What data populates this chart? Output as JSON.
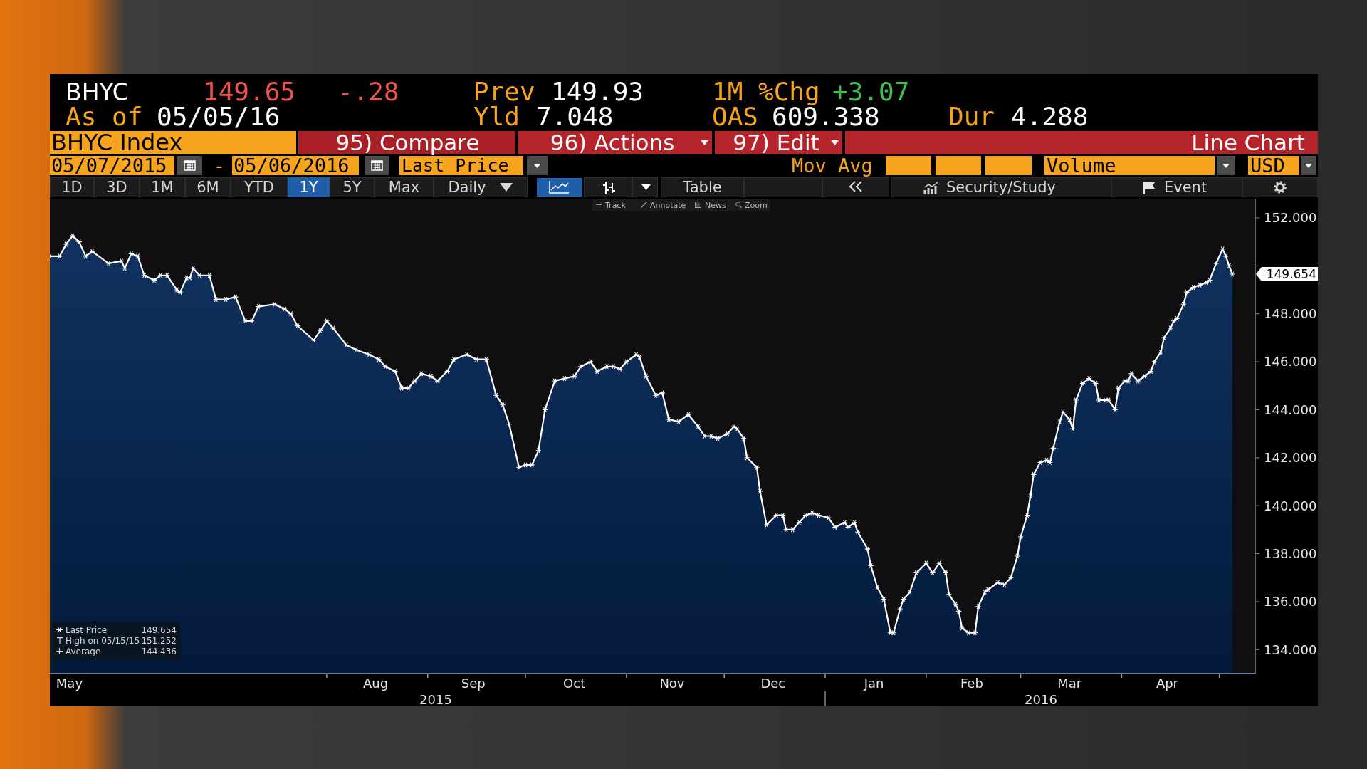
{
  "chart_data": {
    "type": "area",
    "title": "BHYC Index",
    "x": [
      "2015-05-08",
      "2015-05-11",
      "2015-05-13",
      "2015-05-15",
      "2015-05-17",
      "2015-05-19",
      "2015-05-21",
      "2015-05-26",
      "2015-05-30",
      "2015-05-31",
      "2015-06-02",
      "2015-06-04",
      "2015-06-06",
      "2015-06-09",
      "2015-06-11",
      "2015-06-13",
      "2015-06-16",
      "2015-06-17",
      "2015-06-19",
      "2015-06-20",
      "2015-06-21",
      "2015-06-23",
      "2015-06-26",
      "2015-06-28",
      "2015-07-01",
      "2015-07-04",
      "2015-07-07",
      "2015-07-09",
      "2015-07-11",
      "2015-07-16",
      "2015-07-19",
      "2015-07-21",
      "2015-07-23",
      "2015-07-28",
      "2015-07-30",
      "2015-08-01",
      "2015-08-03",
      "2015-08-07",
      "2015-08-10",
      "2015-08-14",
      "2015-08-17",
      "2015-08-19",
      "2015-08-22",
      "2015-08-24",
      "2015-08-26",
      "2015-08-28",
      "2015-08-30",
      "2015-09-02",
      "2015-09-04",
      "2015-09-07",
      "2015-09-09",
      "2015-09-13",
      "2015-09-16",
      "2015-09-19",
      "2015-09-22",
      "2015-09-24",
      "2015-09-26",
      "2015-09-29",
      "2015-10-01",
      "2015-10-03",
      "2015-10-05",
      "2015-10-07",
      "2015-10-10",
      "2015-10-13",
      "2015-10-16",
      "2015-10-18",
      "2015-10-21",
      "2015-10-23",
      "2015-10-26",
      "2015-10-28",
      "2015-10-30",
      "2015-11-01",
      "2015-11-04",
      "2015-11-05",
      "2015-11-07",
      "2015-11-10",
      "2015-11-12",
      "2015-11-14",
      "2015-11-17",
      "2015-11-20",
      "2015-11-23",
      "2015-11-25",
      "2015-11-27",
      "2015-11-29",
      "2015-12-02",
      "2015-12-04",
      "2015-12-05",
      "2015-12-07",
      "2015-12-08",
      "2015-12-11",
      "2015-12-12",
      "2015-12-14",
      "2015-12-17",
      "2015-12-19",
      "2015-12-20",
      "2015-12-22",
      "2015-12-24",
      "2015-12-26",
      "2015-12-28",
      "2015-12-30",
      "2016-01-02",
      "2016-01-04",
      "2016-01-07",
      "2016-01-08",
      "2016-01-10",
      "2016-01-11",
      "2016-01-14",
      "2016-01-15",
      "2016-01-17",
      "2016-01-19",
      "2016-01-21",
      "2016-01-22",
      "2016-01-24",
      "2016-01-25",
      "2016-01-27",
      "2016-01-29",
      "2016-02-01",
      "2016-02-03",
      "2016-02-05",
      "2016-02-07",
      "2016-02-08",
      "2016-02-10",
      "2016-02-11",
      "2016-02-12",
      "2016-02-14",
      "2016-02-16",
      "2016-02-17",
      "2016-02-19",
      "2016-02-20",
      "2016-02-23",
      "2016-02-25",
      "2016-02-27",
      "2016-02-29",
      "2016-03-01",
      "2016-03-03",
      "2016-03-04",
      "2016-03-05",
      "2016-03-07",
      "2016-03-09",
      "2016-03-10",
      "2016-03-11",
      "2016-03-13",
      "2016-03-14",
      "2016-03-16",
      "2016-03-17",
      "2016-03-18",
      "2016-03-20",
      "2016-03-22",
      "2016-03-24",
      "2016-03-25",
      "2016-03-27",
      "2016-03-28",
      "2016-03-30",
      "2016-03-31",
      "2016-04-02",
      "2016-04-03",
      "2016-04-04",
      "2016-04-06",
      "2016-04-08",
      "2016-04-10",
      "2016-04-11",
      "2016-04-13",
      "2016-04-14",
      "2016-04-16",
      "2016-04-17",
      "2016-04-18",
      "2016-04-20",
      "2016-04-21",
      "2016-04-23",
      "2016-04-25",
      "2016-04-27",
      "2016-04-28",
      "2016-04-30",
      "2016-05-02",
      "2016-05-03",
      "2016-05-04",
      "2016-05-05"
    ],
    "series": [
      {
        "name": "Last Price",
        "color": "#ffffff",
        "values": [
          150.4,
          150.4,
          150.9,
          151.252,
          151.0,
          150.4,
          150.6,
          150.1,
          150.2,
          149.9,
          150.5,
          150.4,
          149.6,
          149.4,
          149.6,
          149.6,
          149.0,
          148.9,
          149.5,
          149.5,
          149.9,
          149.6,
          149.6,
          148.6,
          148.6,
          148.7,
          147.7,
          147.7,
          148.3,
          148.4,
          148.2,
          148.0,
          147.5,
          146.9,
          147.3,
          147.7,
          147.4,
          146.7,
          146.5,
          146.3,
          146.1,
          145.8,
          145.6,
          144.9,
          144.9,
          145.2,
          145.5,
          145.4,
          145.2,
          145.6,
          146.1,
          146.3,
          146.1,
          146.1,
          144.6,
          144.2,
          143.4,
          141.6,
          141.7,
          141.7,
          142.3,
          144.0,
          145.2,
          145.3,
          145.4,
          145.8,
          146.0,
          145.6,
          145.8,
          145.8,
          145.7,
          146.0,
          146.3,
          146.2,
          145.4,
          144.6,
          144.7,
          143.6,
          143.5,
          143.8,
          143.3,
          142.9,
          142.9,
          142.8,
          143.0,
          143.3,
          143.2,
          142.8,
          142.0,
          141.6,
          140.6,
          139.2,
          139.6,
          139.6,
          139.0,
          139.0,
          139.3,
          139.6,
          139.7,
          139.6,
          139.5,
          139.1,
          139.3,
          139.1,
          139.3,
          138.9,
          138.2,
          137.5,
          136.6,
          136.1,
          134.7,
          134.7,
          135.7,
          136.1,
          136.4,
          137.2,
          137.6,
          137.2,
          137.6,
          137.2,
          136.3,
          135.9,
          135.6,
          134.9,
          134.7,
          134.7,
          135.8,
          136.4,
          136.5,
          136.8,
          136.7,
          137.0,
          137.9,
          138.7,
          139.6,
          140.4,
          141.3,
          141.8,
          141.9,
          141.8,
          142.4,
          143.5,
          143.9,
          143.6,
          143.2,
          144.4,
          145.1,
          145.3,
          145.1,
          144.4,
          144.4,
          144.4,
          144.0,
          144.9,
          145.2,
          145.2,
          145.5,
          145.2,
          145.4,
          145.6,
          146.0,
          146.4,
          147.0,
          147.4,
          147.7,
          147.8,
          148.4,
          148.9,
          149.1,
          149.2,
          149.3,
          149.4,
          150.1,
          150.7,
          150.4,
          150.0,
          149.654
        ]
      }
    ],
    "xlim": [
      "2015-05-08",
      "2016-05-12"
    ],
    "xticks": [
      {
        "value": "2015-05-14",
        "label": "May"
      },
      {
        "value": "2015-08-01",
        "label": null
      },
      {
        "value": "2015-08-16",
        "label": "Aug"
      },
      {
        "value": "2015-09-01",
        "label": null
      },
      {
        "value": "2015-09-15",
        "label": "Sep"
      },
      {
        "value": "2015-10-01",
        "label": null
      },
      {
        "value": "2015-10-16",
        "label": "Oct"
      },
      {
        "value": "2015-11-01",
        "label": null
      },
      {
        "value": "2015-11-15",
        "label": "Nov"
      },
      {
        "value": "2015-12-01",
        "label": null
      },
      {
        "value": "2015-12-16",
        "label": "Dec"
      },
      {
        "value": "2016-01-01",
        "label": null
      },
      {
        "value": "2016-01-16",
        "label": "Jan"
      },
      {
        "value": "2016-02-01",
        "label": null
      },
      {
        "value": "2016-02-15",
        "label": "Feb"
      },
      {
        "value": "2016-03-01",
        "label": null
      },
      {
        "value": "2016-03-16",
        "label": "Mar"
      },
      {
        "value": "2016-04-01",
        "label": null
      },
      {
        "value": "2016-04-15",
        "label": "Apr"
      },
      {
        "value": "2016-05-01",
        "label": null
      }
    ],
    "ylim": [
      133,
      152.8
    ],
    "yticks": [
      {
        "value": 134,
        "label": "134.000"
      },
      {
        "value": 136,
        "label": "136.000"
      },
      {
        "value": 138,
        "label": "138.000"
      },
      {
        "value": 140,
        "label": "140.000"
      },
      {
        "value": 142,
        "label": "142.000"
      },
      {
        "value": 144,
        "label": "144.000"
      },
      {
        "value": 146,
        "label": "146.000"
      },
      {
        "value": 148,
        "label": "148.000"
      },
      {
        "value": 150,
        "label": null
      },
      {
        "value": 152,
        "label": "152.000"
      }
    ],
    "legend": "bottom left",
    "marker": "cross",
    "line_style": "solid",
    "annotations": [
      "BHYC",
      "149.65",
      "-.28",
      "Prev",
      "149.93",
      "1M %Chg",
      "+3.07",
      "As of",
      "05/05/16",
      "Yld",
      "7.048",
      "OAS",
      "609.338",
      "Dur",
      "4.288",
      "95) Compare",
      "96) Actions",
      "97) Edit",
      "Line Chart",
      "05/07/2015",
      "-",
      "05/06/2016",
      "Last Price",
      "Mov Avg",
      "Volume",
      "USD",
      "1D",
      "3D",
      "1M",
      "6M",
      "YTD",
      "1Y",
      "5Y",
      "Max",
      "Daily",
      "Table",
      "Security/Study",
      "Event",
      "Track",
      "Annotate",
      "News",
      "Zoom",
      "149.654",
      "High on 05/15/15",
      "151.252",
      "Average",
      "144.436",
      "2015",
      "2016",
      "149.654"
    ]
  }
}
